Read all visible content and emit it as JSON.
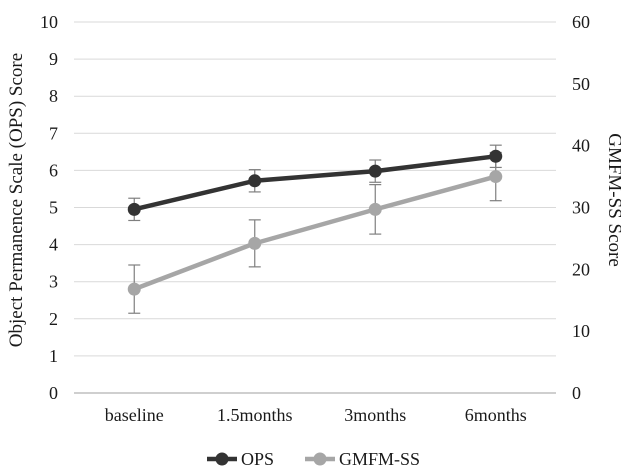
{
  "chart_data": {
    "type": "line",
    "categories": [
      "baseline",
      "1.5months",
      "3months",
      "6months"
    ],
    "series": [
      {
        "name": "OPS",
        "axis": "left",
        "values": [
          4.95,
          5.72,
          5.98,
          6.38
        ],
        "error": [
          0.3,
          0.3,
          0.3,
          0.3
        ],
        "color": "#333333"
      },
      {
        "name": "GMFM-SS",
        "axis": "right",
        "values": [
          16.8,
          24.2,
          29.7,
          35.0
        ],
        "error": [
          3.9,
          3.8,
          4.0,
          3.9
        ],
        "color": "#a6a6a6"
      }
    ],
    "ylabel_left": "Object Permanence Scale (OPS) Score",
    "ylabel_right": "GMFM-SS Score",
    "ylim_left": [
      0,
      10
    ],
    "ylim_right": [
      0,
      60
    ],
    "yticks_left": [
      "0",
      "1",
      "2",
      "3",
      "4",
      "5",
      "6",
      "7",
      "8",
      "9",
      "10"
    ],
    "yticks_right": [
      "0",
      "10",
      "20",
      "30",
      "40",
      "50",
      "60"
    ],
    "grid": true,
    "legend_position": "bottom"
  }
}
